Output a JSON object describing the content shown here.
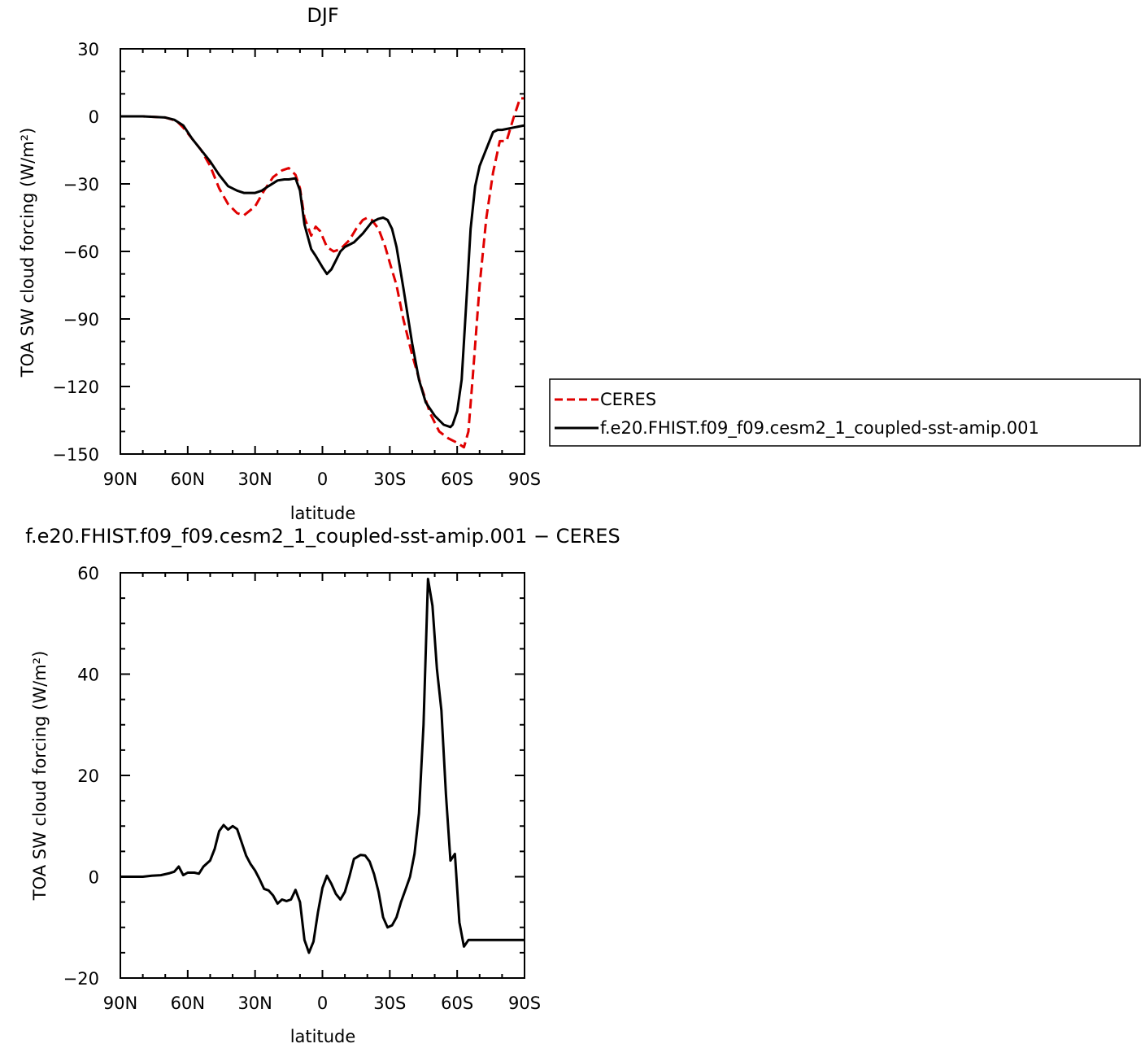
{
  "chart_data": [
    {
      "type": "line",
      "title": "DJF",
      "xlabel": "latitude",
      "ylabel": "TOA SW cloud forcing (W/m²)",
      "xlim": [
        90,
        -90
      ],
      "ylim": [
        -150,
        30
      ],
      "xticks": [
        {
          "value": 90,
          "label": "90N"
        },
        {
          "value": 60,
          "label": "60N"
        },
        {
          "value": 30,
          "label": "30N"
        },
        {
          "value": 0,
          "label": "0"
        },
        {
          "value": -30,
          "label": "30S"
        },
        {
          "value": -60,
          "label": "60S"
        },
        {
          "value": -90,
          "label": "90S"
        }
      ],
      "yticks": [
        {
          "value": 30,
          "label": "30"
        },
        {
          "value": 0,
          "label": "0"
        },
        {
          "value": -30,
          "label": "−30"
        },
        {
          "value": -60,
          "label": "−60"
        },
        {
          "value": -90,
          "label": "−90"
        },
        {
          "value": -120,
          "label": "−120"
        },
        {
          "value": -150,
          "label": "−150"
        }
      ],
      "legend": "right",
      "series": [
        {
          "name": "CERES",
          "color": "#e00000",
          "dash": true,
          "x": [
            90,
            80,
            70,
            65,
            62,
            58,
            54,
            50,
            46,
            42,
            38,
            35,
            30,
            26,
            22,
            18,
            15,
            12,
            10,
            8,
            5,
            3,
            1,
            -2,
            -5,
            -8,
            -12,
            -15,
            -18,
            -20,
            -22,
            -25,
            -28,
            -30,
            -33,
            -36,
            -40,
            -44,
            -48,
            -52,
            -56,
            -60,
            -63,
            -65,
            -67,
            -70,
            -73,
            -76,
            -79,
            -82,
            -85,
            -88,
            -90
          ],
          "y": [
            0,
            0,
            -0.5,
            -2,
            -5,
            -10,
            -15,
            -22,
            -32,
            -39,
            -43,
            -44,
            -40,
            -33,
            -27,
            -24,
            -23,
            -26,
            -32,
            -45,
            -53,
            -49,
            -51,
            -58,
            -60,
            -59,
            -55,
            -50,
            -46,
            -45,
            -46,
            -50,
            -58,
            -65,
            -75,
            -90,
            -106,
            -120,
            -132,
            -140,
            -143,
            -145,
            -147,
            -140,
            -115,
            -75,
            -45,
            -25,
            -11,
            -11,
            -1,
            8,
            8
          ]
        },
        {
          "name": "f.e20.FHIST.f09_f09.cesm2_1_coupled-sst-amip.001",
          "color": "#000000",
          "dash": false,
          "x": [
            90,
            80,
            70,
            66,
            62,
            58,
            54,
            50,
            46,
            42,
            38,
            35,
            32,
            30,
            27,
            24,
            20,
            17,
            15,
            12,
            10,
            8,
            5,
            3,
            0,
            -2,
            -4,
            -6,
            -8,
            -10,
            -14,
            -18,
            -22,
            -25,
            -27,
            -29,
            -31,
            -33,
            -36,
            -40,
            -43,
            -46,
            -50,
            -54,
            -57,
            -58,
            -60,
            -62,
            -64,
            -66,
            -68,
            -70,
            -72,
            -74,
            -76,
            -78,
            -80,
            -85,
            -90
          ],
          "y": [
            0,
            0,
            -0.5,
            -1.5,
            -4,
            -10,
            -15,
            -20,
            -26,
            -31,
            -33,
            -34,
            -34,
            -34,
            -33,
            -31,
            -28.5,
            -28,
            -28,
            -27.5,
            -33,
            -48,
            -59,
            -62,
            -67,
            -70,
            -68,
            -64,
            -60,
            -58,
            -56,
            -52,
            -47,
            -45.5,
            -45,
            -46,
            -50,
            -58,
            -76,
            -101,
            -117,
            -127,
            -133,
            -137,
            -138,
            -137,
            -131,
            -117,
            -84,
            -50,
            -31,
            -22,
            -17,
            -12,
            -7,
            -6,
            -6,
            -5,
            -4
          ]
        }
      ]
    },
    {
      "type": "line",
      "title": "f.e20.FHIST.f09_f09.cesm2_1_coupled-sst-amip.001 − CERES",
      "xlabel": "latitude",
      "ylabel": "TOA SW cloud forcing (W/m²)",
      "xlim": [
        90,
        -90
      ],
      "ylim": [
        -20,
        60
      ],
      "xticks": [
        {
          "value": 90,
          "label": "90N"
        },
        {
          "value": 60,
          "label": "60N"
        },
        {
          "value": 30,
          "label": "30N"
        },
        {
          "value": 0,
          "label": "0"
        },
        {
          "value": -30,
          "label": "30S"
        },
        {
          "value": -60,
          "label": "60S"
        },
        {
          "value": -90,
          "label": "90S"
        }
      ],
      "yticks": [
        {
          "value": 60,
          "label": "60"
        },
        {
          "value": 40,
          "label": "40"
        },
        {
          "value": 20,
          "label": "20"
        },
        {
          "value": 0,
          "label": "0"
        },
        {
          "value": -20,
          "label": "−20"
        }
      ],
      "series": [
        {
          "name": "",
          "color": "#000000",
          "dash": false,
          "x": [
            90,
            80,
            76,
            72,
            68,
            66,
            64,
            62,
            60,
            57,
            55,
            53,
            50,
            48,
            46,
            44,
            42,
            40,
            38,
            36,
            34,
            32,
            30,
            28,
            26,
            24,
            22,
            20,
            18,
            16,
            14,
            12,
            10,
            8,
            6,
            4,
            2,
            0,
            -2,
            -4,
            -6,
            -8,
            -10,
            -12,
            -14,
            -17,
            -19,
            -21,
            -23,
            -25,
            -27,
            -29,
            -31,
            -33,
            -35,
            -37,
            -39,
            -41,
            -43,
            -45,
            -47,
            -49,
            -51,
            -53,
            -55,
            -57,
            -59,
            -61,
            -63,
            -65,
            -67,
            -69,
            -71,
            -73,
            -75,
            -77,
            -79,
            -81,
            -83,
            -85,
            -87,
            -89,
            -90
          ],
          "y": [
            0,
            0,
            0.2,
            0.3,
            0.7,
            1,
            2,
            0.3,
            0.8,
            0.8,
            0.6,
            2,
            3.2,
            5.5,
            9,
            10.2,
            9.3,
            10,
            9.4,
            6.8,
            4.2,
            2.5,
            1.2,
            -0.5,
            -2.4,
            -2.7,
            -3.7,
            -5.3,
            -4.5,
            -4.8,
            -4.5,
            -2.6,
            -5,
            -12.5,
            -15,
            -12.8,
            -7,
            -2.2,
            0.2,
            -1.4,
            -3.4,
            -4.5,
            -3,
            0,
            3.5,
            4.3,
            4.2,
            3,
            0.5,
            -3,
            -8,
            -10,
            -9.6,
            -8,
            -5,
            -2.5,
            0,
            4.5,
            12.5,
            30,
            58.8,
            53.5,
            41,
            32.8,
            16.2,
            3.2,
            4.5,
            -9,
            -13.8,
            -12.5,
            -12.5,
            -12.5,
            -12.5,
            -12.5,
            -12.5,
            -12.5,
            -12.5,
            -12.5,
            -12.5,
            -12.5,
            -12.5,
            -12.5,
            -12.5
          ]
        }
      ]
    }
  ]
}
